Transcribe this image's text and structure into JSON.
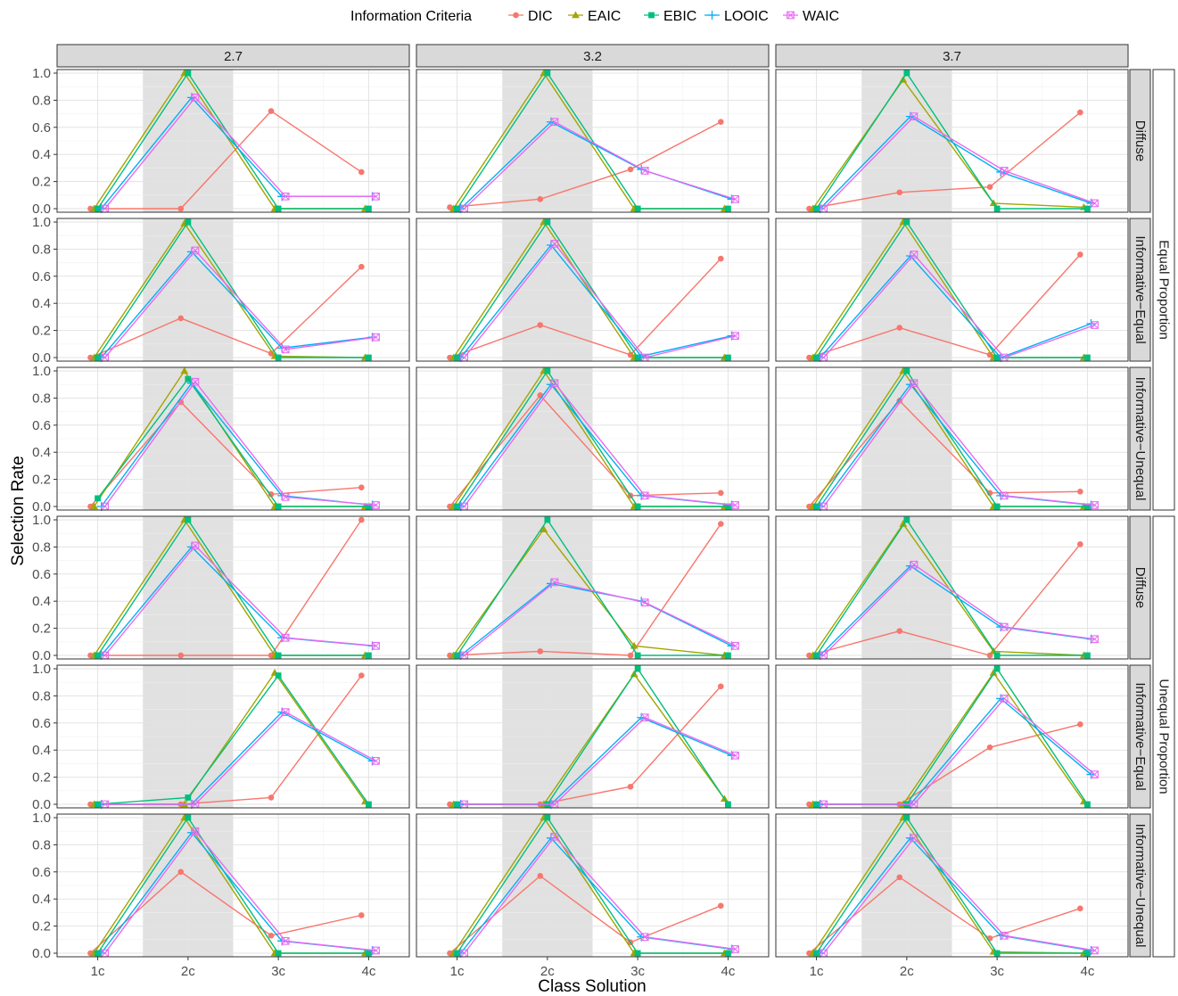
{
  "chart_data": {
    "type": "line",
    "xlabel": "Class Solution",
    "ylabel": "Selection Rate",
    "ylim": [
      0,
      1
    ],
    "y_ticks": [
      "0.0",
      "0.2",
      "0.4",
      "0.6",
      "0.8",
      "1.0"
    ],
    "categories": [
      "1c",
      "2c",
      "3c",
      "4c"
    ],
    "highlight_category": "2c",
    "grid": true,
    "legend": {
      "title": "Information Criteria",
      "position": "top",
      "items": [
        {
          "name": "DIC",
          "color": "#F8766D",
          "marker": "circle"
        },
        {
          "name": "EAIC",
          "color": "#A3A500",
          "marker": "triangle"
        },
        {
          "name": "EBIC",
          "color": "#00BF7D",
          "marker": "square"
        },
        {
          "name": "LOOIC",
          "color": "#00B0F6",
          "marker": "plus"
        },
        {
          "name": "WAIC",
          "color": "#E76BF3",
          "marker": "boxed-cross"
        }
      ]
    },
    "col_labels": [
      "2.7",
      "3.2",
      "3.7"
    ],
    "row_labels": [
      "Diffuse",
      "Informative−Equal",
      "Informative−Unequal",
      "Diffuse",
      "Informative−Equal",
      "Informative−Unequal"
    ],
    "outer_labels": [
      "Equal Proportion",
      "Unequal Proportion"
    ],
    "panels": [
      [
        {
          "DIC": [
            0,
            0,
            0.72,
            0.27
          ],
          "EAIC": [
            0,
            1,
            0,
            0
          ],
          "EBIC": [
            0,
            1,
            0,
            0
          ],
          "LOOIC": [
            0,
            0.82,
            0.09,
            0.09
          ],
          "WAIC": [
            0,
            0.82,
            0.09,
            0.09
          ]
        },
        {
          "DIC": [
            0.01,
            0.07,
            0.29,
            0.64
          ],
          "EAIC": [
            0,
            1,
            0,
            0
          ],
          "EBIC": [
            0,
            1,
            0,
            0
          ],
          "LOOIC": [
            0,
            0.64,
            0.29,
            0.07
          ],
          "WAIC": [
            0,
            0.64,
            0.28,
            0.07
          ]
        },
        {
          "DIC": [
            0,
            0.12,
            0.16,
            0.71
          ],
          "EAIC": [
            0,
            0.95,
            0.04,
            0.01
          ],
          "EBIC": [
            0,
            1,
            0,
            0
          ],
          "LOOIC": [
            0,
            0.68,
            0.27,
            0.04
          ],
          "WAIC": [
            0,
            0.68,
            0.28,
            0.04
          ]
        }
      ],
      [
        {
          "DIC": [
            0,
            0.29,
            0.03,
            0.67
          ],
          "EAIC": [
            0,
            0.99,
            0.01,
            0
          ],
          "EBIC": [
            0,
            1,
            0,
            0
          ],
          "LOOIC": [
            0,
            0.78,
            0.07,
            0.15
          ],
          "WAIC": [
            0,
            0.79,
            0.06,
            0.15
          ]
        },
        {
          "DIC": [
            0,
            0.24,
            0.02,
            0.73
          ],
          "EAIC": [
            0,
            1,
            0,
            0
          ],
          "EBIC": [
            0,
            1,
            0,
            0
          ],
          "LOOIC": [
            0,
            0.83,
            0.01,
            0.16
          ],
          "WAIC": [
            0,
            0.84,
            0,
            0.16
          ]
        },
        {
          "DIC": [
            0,
            0.22,
            0.02,
            0.76
          ],
          "EAIC": [
            0,
            1,
            0,
            0
          ],
          "EBIC": [
            0,
            1,
            0,
            0
          ],
          "LOOIC": [
            0,
            0.75,
            0,
            0.25
          ],
          "WAIC": [
            0,
            0.76,
            0,
            0.24
          ]
        }
      ],
      [
        {
          "DIC": [
            0,
            0.77,
            0.09,
            0.14
          ],
          "EAIC": [
            0,
            1,
            0,
            0
          ],
          "EBIC": [
            0.06,
            0.94,
            0,
            0
          ],
          "LOOIC": [
            0,
            0.91,
            0.08,
            0.01
          ],
          "WAIC": [
            0,
            0.92,
            0.07,
            0.01
          ]
        },
        {
          "DIC": [
            0,
            0.82,
            0.08,
            0.1
          ],
          "EAIC": [
            0,
            1,
            0,
            0
          ],
          "EBIC": [
            0,
            1,
            0,
            0
          ],
          "LOOIC": [
            0,
            0.9,
            0.08,
            0.01
          ],
          "WAIC": [
            0,
            0.91,
            0.08,
            0.01
          ]
        },
        {
          "DIC": [
            0,
            0.78,
            0.1,
            0.11
          ],
          "EAIC": [
            0,
            1,
            0,
            0
          ],
          "EBIC": [
            0,
            1,
            0,
            0
          ],
          "LOOIC": [
            0,
            0.9,
            0.08,
            0.01
          ],
          "WAIC": [
            0,
            0.91,
            0.08,
            0.01
          ]
        }
      ],
      [
        {
          "DIC": [
            0,
            0,
            0,
            1
          ],
          "EAIC": [
            0,
            1,
            0,
            0
          ],
          "EBIC": [
            0,
            1,
            0,
            0
          ],
          "LOOIC": [
            0,
            0.8,
            0.13,
            0.07
          ],
          "WAIC": [
            0,
            0.81,
            0.13,
            0.07
          ]
        },
        {
          "DIC": [
            0,
            0.03,
            0,
            0.97
          ],
          "EAIC": [
            0,
            0.93,
            0.07,
            0
          ],
          "EBIC": [
            0,
            1,
            0,
            0
          ],
          "LOOIC": [
            0,
            0.53,
            0.4,
            0.07
          ],
          "WAIC": [
            0,
            0.54,
            0.39,
            0.07
          ]
        },
        {
          "DIC": [
            0,
            0.18,
            0,
            0.82
          ],
          "EAIC": [
            0,
            0.97,
            0.03,
            0
          ],
          "EBIC": [
            0,
            1,
            0,
            0
          ],
          "LOOIC": [
            0,
            0.66,
            0.21,
            0.12
          ],
          "WAIC": [
            0,
            0.67,
            0.21,
            0.12
          ]
        }
      ],
      [
        {
          "DIC": [
            0,
            0,
            0.05,
            0.95
          ],
          "EAIC": [
            0,
            0,
            0.97,
            0.02
          ],
          "EBIC": [
            0,
            0.05,
            0.95,
            0
          ],
          "LOOIC": [
            0,
            0,
            0.68,
            0.32
          ],
          "WAIC": [
            0,
            0,
            0.68,
            0.32
          ]
        },
        {
          "DIC": [
            0,
            0,
            0.13,
            0.87
          ],
          "EAIC": [
            0,
            0,
            0.96,
            0.04
          ],
          "EBIC": [
            0,
            0,
            1,
            0
          ],
          "LOOIC": [
            0,
            0,
            0.64,
            0.36
          ],
          "WAIC": [
            0,
            0,
            0.64,
            0.36
          ]
        },
        {
          "DIC": [
            0,
            0,
            0.42,
            0.59
          ],
          "EAIC": [
            0,
            0,
            0.97,
            0.02
          ],
          "EBIC": [
            0,
            0,
            1,
            0
          ],
          "LOOIC": [
            0,
            0,
            0.78,
            0.22
          ],
          "WAIC": [
            0,
            0,
            0.78,
            0.22
          ]
        }
      ],
      [
        {
          "DIC": [
            0,
            0.6,
            0.13,
            0.28
          ],
          "EAIC": [
            0,
            1,
            0,
            0
          ],
          "EBIC": [
            0,
            1,
            0,
            0
          ],
          "LOOIC": [
            0,
            0.89,
            0.09,
            0.02
          ],
          "WAIC": [
            0,
            0.9,
            0.09,
            0.02
          ]
        },
        {
          "DIC": [
            0,
            0.57,
            0.08,
            0.35
          ],
          "EAIC": [
            0,
            1,
            0,
            0
          ],
          "EBIC": [
            0,
            1,
            0,
            0
          ],
          "LOOIC": [
            0,
            0.85,
            0.12,
            0.03
          ],
          "WAIC": [
            0,
            0.86,
            0.12,
            0.03
          ]
        },
        {
          "DIC": [
            0,
            0.56,
            0.11,
            0.33
          ],
          "EAIC": [
            0,
            1,
            0.01,
            0
          ],
          "EBIC": [
            0,
            1,
            0,
            0
          ],
          "LOOIC": [
            0,
            0.85,
            0.13,
            0.02
          ],
          "WAIC": [
            0,
            0.85,
            0.13,
            0.02
          ]
        }
      ]
    ]
  }
}
